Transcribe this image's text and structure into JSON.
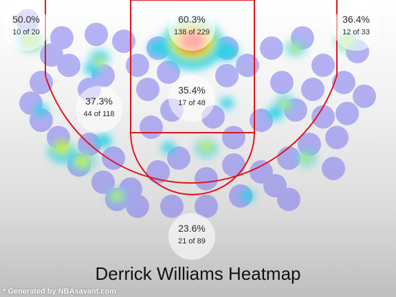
{
  "chart_data": {
    "type": "heatmap",
    "title": "Derrick Williams Heatmap",
    "zones": [
      {
        "name": "left-corner-three",
        "pct": "50.0%",
        "made": 10,
        "attempts": 20,
        "label": "10 of 20"
      },
      {
        "name": "restricted-area",
        "pct": "60.3%",
        "made": 138,
        "attempts": 229,
        "label": "138 of 229"
      },
      {
        "name": "right-corner-three",
        "pct": "36.4%",
        "made": 12,
        "attempts": 33,
        "label": "12 of 33"
      },
      {
        "name": "left-mid-range",
        "pct": "37.3%",
        "made": 44,
        "attempts": 118,
        "label": "44 of 118"
      },
      {
        "name": "in-the-paint",
        "pct": "35.4%",
        "made": 17,
        "attempts": 48,
        "label": "17 of 48"
      },
      {
        "name": "above-break-three",
        "pct": "23.6%",
        "made": 21,
        "attempts": 89,
        "label": "21 of 89"
      }
    ],
    "colors": {
      "court_lines": "#e3131b",
      "cold": "#7d78f0",
      "mid": "#2cd2e8",
      "warm": "#c4ef22",
      "hot": "#ff3a3a"
    }
  },
  "footer": {
    "credit": "* Generated by NBAsavant.com"
  }
}
